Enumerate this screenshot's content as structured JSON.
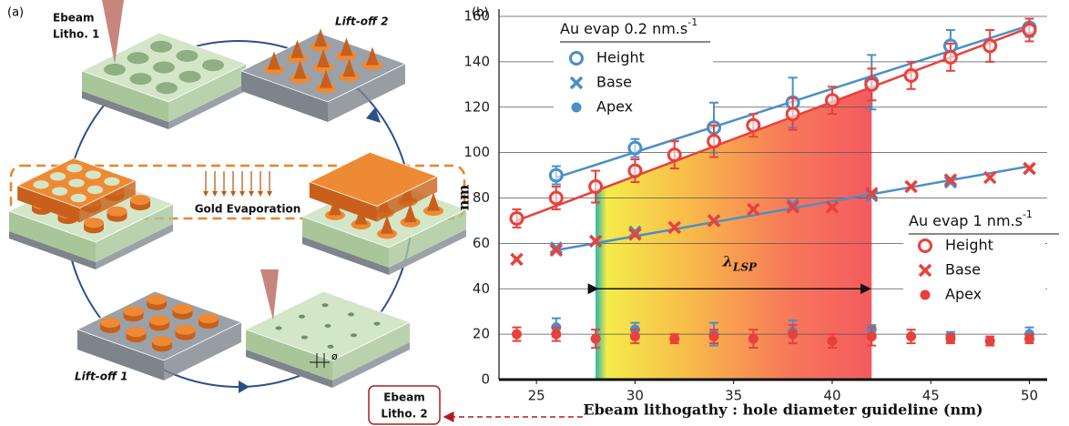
{
  "diagram": {
    "panel_label": "(a)",
    "ebeam1": [
      "Ebeam",
      "Litho. 1"
    ],
    "liftoff2": "Lift-off 2",
    "gold": "Gold Evaporation",
    "liftoff1": "Lift-off 1",
    "diameter": "ø",
    "ebeam2": [
      "Ebeam",
      "Litho. 2"
    ]
  },
  "chart_data": {
    "type": "scatter",
    "panel_label": "(b)",
    "x_label": "Ebeam lithogathy : hole diameter guideline (nm)",
    "y_label": "nm",
    "xlim": [
      23.1,
      50.9
    ],
    "ylim": [
      0,
      160
    ],
    "xticks": [
      25,
      30,
      35,
      40,
      45,
      50
    ],
    "yticks": [
      0,
      20,
      40,
      60,
      80,
      100,
      120,
      140,
      160
    ],
    "grid": true,
    "legend_titles": [
      {
        "text": "Au evap 0.2 nm.s",
        "sup": "-1"
      },
      {
        "text": "Au evap 1 nm.s",
        "sup": "-1"
      }
    ],
    "region": {
      "x": [
        28,
        42
      ],
      "label": "λ",
      "sub": "LSP"
    },
    "series": [
      {
        "name": "Height",
        "legend": 0,
        "marker": "open-circle",
        "color": "#4a8fc7",
        "x": [
          26,
          30,
          34,
          38,
          42,
          46,
          50
        ],
        "values": [
          90,
          102,
          111,
          122,
          131,
          147,
          155
        ],
        "errors": [
          4,
          4,
          11,
          11,
          12,
          7,
          4
        ]
      },
      {
        "name": "Base",
        "legend": 0,
        "marker": "x",
        "color": "#4a8fc7",
        "x": [
          26,
          30,
          34,
          38,
          42,
          46,
          50
        ],
        "values": [
          58,
          65,
          70,
          77,
          81,
          87,
          93
        ]
      },
      {
        "name": "Apex",
        "legend": 0,
        "marker": "dot",
        "color": "#4a8fc7",
        "x": [
          26,
          30,
          34,
          38,
          42,
          46,
          50
        ],
        "values": [
          23,
          22,
          20,
          21,
          22,
          19,
          20
        ],
        "errors": [
          4,
          3,
          5,
          5,
          2,
          2,
          3
        ]
      },
      {
        "name": "Height",
        "legend": 1,
        "marker": "open-circle",
        "color": "#e8413c",
        "x": [
          24,
          26,
          28,
          30,
          32,
          34,
          36,
          38,
          40,
          42,
          44,
          46,
          48,
          50
        ],
        "values": [
          71,
          80,
          85,
          92,
          99,
          105,
          112,
          117,
          123,
          130,
          134,
          142,
          147,
          154
        ],
        "errors": [
          4,
          5,
          7,
          5,
          6,
          7,
          5,
          7,
          6,
          7,
          6,
          6,
          7,
          5
        ]
      },
      {
        "name": "Base",
        "legend": 1,
        "marker": "x",
        "color": "#e8413c",
        "x": [
          24,
          26,
          28,
          30,
          32,
          34,
          36,
          38,
          40,
          42,
          44,
          46,
          48,
          50
        ],
        "values": [
          53,
          57,
          61,
          64,
          67,
          70,
          75,
          76,
          76,
          82,
          85,
          88,
          89,
          93
        ]
      },
      {
        "name": "Apex",
        "legend": 1,
        "marker": "dot",
        "color": "#e8413c",
        "x": [
          24,
          26,
          28,
          30,
          32,
          34,
          36,
          38,
          40,
          42,
          44,
          46,
          48,
          50
        ],
        "values": [
          20,
          20,
          18,
          19,
          18,
          19,
          18,
          20,
          17,
          19,
          19,
          18,
          17,
          18
        ],
        "errors": [
          3,
          3,
          4,
          3,
          2,
          3,
          4,
          4,
          3,
          4,
          3,
          2,
          2,
          2
        ]
      }
    ],
    "fit_lines": [
      {
        "color": "#4a8fc7",
        "x": [
          26,
          50
        ],
        "values": [
          89,
          156
        ]
      },
      {
        "color": "#e8413c",
        "x": [
          24,
          50
        ],
        "values": [
          70,
          155
        ]
      },
      {
        "color": "#4a8fc7",
        "x": [
          26,
          50
        ],
        "values": [
          57,
          94
        ]
      }
    ]
  }
}
